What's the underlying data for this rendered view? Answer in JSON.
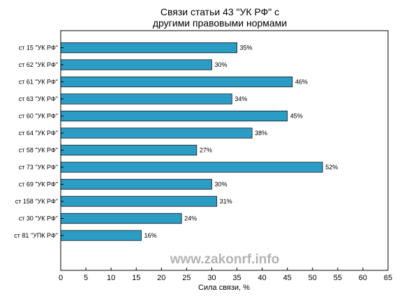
{
  "chart_data": {
    "type": "bar",
    "orientation": "horizontal",
    "title_line1": "Связи статьи 43 \"УК РФ\" с",
    "title_line2": "другими правовыми нормами",
    "xlabel": "Сила связи, %",
    "ylabel": "",
    "xlim": [
      0,
      65
    ],
    "xticks": [
      "0",
      "5",
      "10",
      "15",
      "20",
      "25",
      "30",
      "35",
      "40",
      "45",
      "50",
      "55",
      "60",
      "65"
    ],
    "categories": [
      "ст 15 \"УК РФ\"",
      "ст 62 \"УК РФ\"",
      "ст 61 \"УК РФ\"",
      "ст 63 \"УК РФ\"",
      "ст 60 \"УК РФ\"",
      "ст 64 \"УК РФ\"",
      "ст 58 \"УК РФ\"",
      "ст 73 \"УК РФ\"",
      "ст 69 \"УК РФ\"",
      "ст 158 \"УК РФ\"",
      "ст 30 \"УК РФ\"",
      "ст 81 \"УПК РФ\""
    ],
    "values": [
      35,
      30,
      46,
      34,
      45,
      38,
      27,
      52,
      30,
      31,
      24,
      16
    ],
    "value_labels": [
      "35%",
      "30%",
      "46%",
      "34%",
      "45%",
      "38%",
      "27%",
      "52%",
      "30%",
      "31%",
      "24%",
      "16%"
    ],
    "bar_color": "#2b9cc4",
    "grid": false,
    "legend": "none",
    "watermark": "www.zakonrf.info"
  }
}
